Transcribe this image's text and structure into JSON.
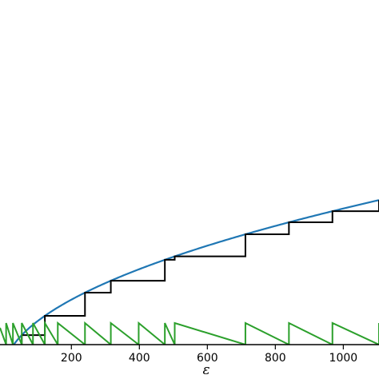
{
  "chart_data": {
    "type": "line",
    "title": "",
    "xlabel": "ε",
    "ylabel": "",
    "xlim": [
      -10,
      1105
    ],
    "x_ticks": [
      200,
      400,
      600,
      800,
      1000
    ],
    "x_tick_labels": [
      "200",
      "400",
      "600",
      "800",
      "1000"
    ],
    "y_ticks": [],
    "grid": false,
    "legend": "none",
    "curve_coefficient": 32.6,
    "level_step": 1.475,
    "colors": {
      "smooth": "#1f77b4",
      "staircase": "#000000",
      "sawtooth": "#2ca02c"
    },
    "series": [
      {
        "style": "smooth",
        "function": "sqrt"
      },
      {
        "style": "staircase",
        "jumps_x": [
          8,
          54,
          122,
          240,
          316,
          475,
          504,
          712,
          840,
          968,
          1105
        ]
      },
      {
        "style": "sawtooth",
        "jumps_x": [
          8,
          28,
          54,
          87,
          122,
          160,
          240,
          316,
          398,
          475,
          504,
          712,
          840,
          968,
          1105
        ]
      }
    ]
  }
}
